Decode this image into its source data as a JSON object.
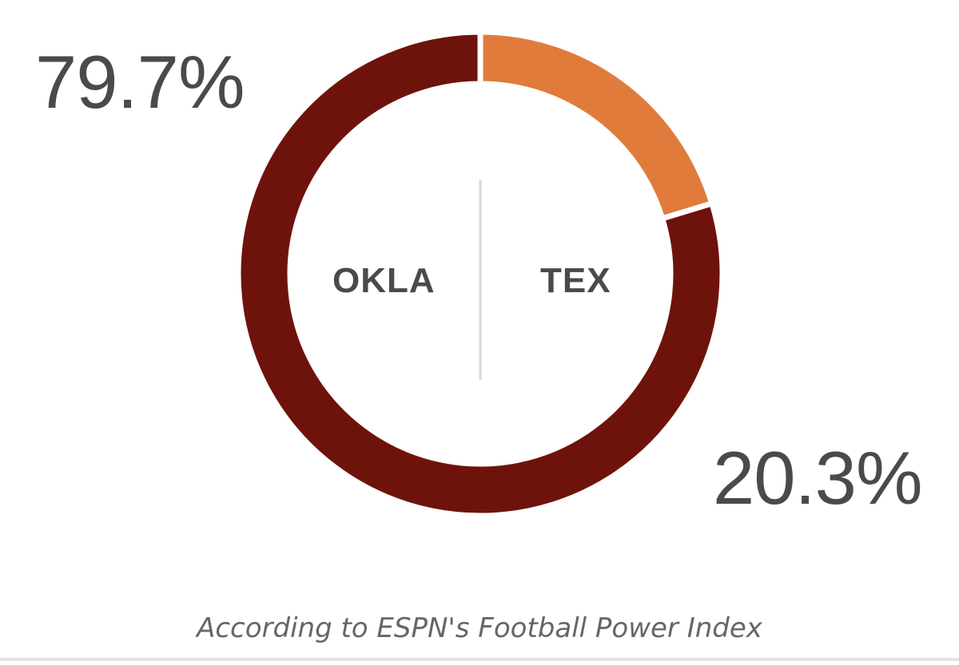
{
  "chart_data": {
    "type": "pie",
    "style": "donut",
    "categories": [
      "OKLA",
      "TEX"
    ],
    "values": [
      79.7,
      20.3
    ],
    "value_labels": [
      "79.7%",
      "20.3%"
    ],
    "colors": [
      "#6e130c",
      "#e07b3c"
    ],
    "divider_color": "#d8d8d8",
    "caption": "According to ESPN's Football Power Index"
  }
}
